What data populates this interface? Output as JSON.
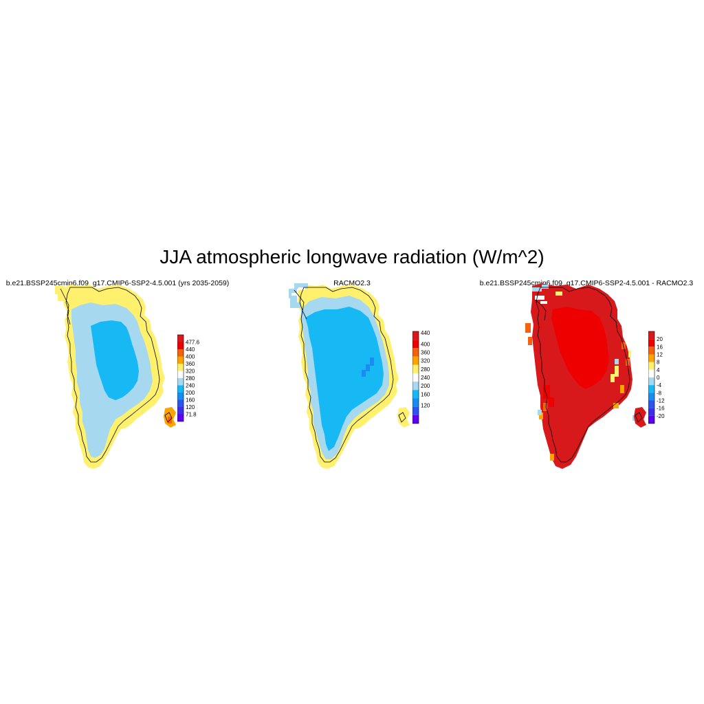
{
  "figure": {
    "title": "JJA atmospheric longwave radiation (W/m^2)"
  },
  "panels": [
    {
      "title": "b.e21.BSSP245cmip6.f09_g17.CMIP6-SSP2-4.5.001 (yrs 2035-2059)",
      "field": "model",
      "colorbar": {
        "labels": [
          "477.6",
          "440",
          "400",
          "360",
          "320",
          "280",
          "240",
          "200",
          "160",
          "120",
          "71.8"
        ],
        "colors": [
          "#d7191c",
          "#ee0000",
          "#f4620f",
          "#fda400",
          "#fff16e",
          "#ffffff",
          "#a6d8f0",
          "#17b9f5",
          "#1a8cf0",
          "#2b55ee",
          "#3d2ee8",
          "#5f00f0"
        ]
      }
    },
    {
      "title": "RACMO2.3",
      "field": "racmo",
      "colorbar": {
        "labels": [
          "440",
          "400",
          "360",
          "320",
          "280",
          "240",
          "200",
          "160",
          "120"
        ],
        "colors": [
          "#d7191c",
          "#ee0000",
          "#f4620f",
          "#fda400",
          "#fff16e",
          "#ffffff",
          "#a6d8f0",
          "#17b9f5",
          "#1a8cf0",
          "#2b55ee",
          "#5f00f0"
        ]
      }
    },
    {
      "title": "b.e21.BSSP245cmip6.f09_g17.CMIP6-SSP2-4.5.001 - RACMO2.3",
      "field": "difference",
      "colorbar": {
        "labels": [
          "20",
          "16",
          "12",
          "8",
          "4",
          "0",
          "-4",
          "-8",
          "-12",
          "-16",
          "-20"
        ],
        "colors": [
          "#d7191c",
          "#ee0000",
          "#f4620f",
          "#fda400",
          "#fff16e",
          "#ffffff",
          "#a6d8f0",
          "#17b9f5",
          "#1a8cf0",
          "#2b55ee",
          "#3d2ee8",
          "#5f00f0"
        ]
      }
    }
  ],
  "map_colors": {
    "coast": "#fff16e",
    "margin": "#a6d8f0",
    "interior": "#17b9f5",
    "patch": "#1a8cf0",
    "iceland_outer": "#fda400",
    "iceland_inner": "#f4620f",
    "diff_main": "#d7191c",
    "diff_core": "#ee0000",
    "diff_edge1": "#f4620f",
    "diff_edge2": "#fda400",
    "diff_edge3": "#fff16e",
    "diff_neg": "#a6d8f0",
    "outline": "#000000"
  }
}
